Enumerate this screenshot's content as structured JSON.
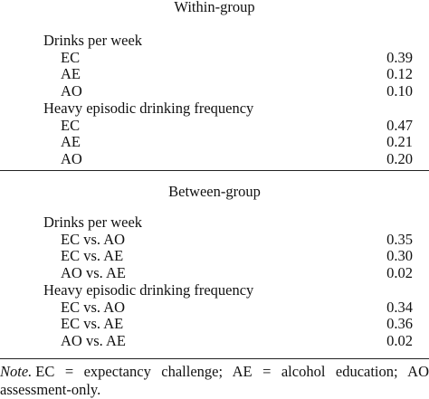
{
  "sections": [
    {
      "title": "Within-group",
      "groups": [
        {
          "label": "Drinks per week",
          "rows": [
            [
              "EC",
              "0.39"
            ],
            [
              "AE",
              "0.12"
            ],
            [
              "AO",
              "0.10"
            ]
          ]
        },
        {
          "label": "Heavy episodic drinking frequency",
          "rows": [
            [
              "EC",
              "0.47"
            ],
            [
              "AE",
              "0.21"
            ],
            [
              "AO",
              "0.20"
            ]
          ]
        }
      ]
    },
    {
      "title": "Between-group",
      "groups": [
        {
          "label": "Drinks per week",
          "rows": [
            [
              "EC vs. AO",
              "0.35"
            ],
            [
              "EC vs. AE",
              "0.30"
            ],
            [
              "AO vs. AE",
              "0.02"
            ]
          ]
        },
        {
          "label": "Heavy episodic drinking frequency",
          "rows": [
            [
              "EC vs. AO",
              "0.34"
            ],
            [
              "EC vs. AE",
              "0.36"
            ],
            [
              "AO vs. AE",
              "0.02"
            ]
          ]
        }
      ]
    }
  ],
  "note": {
    "label": "Note.",
    "text": "EC = expectancy challenge; AE = alcohol education; AO assessment-only."
  }
}
